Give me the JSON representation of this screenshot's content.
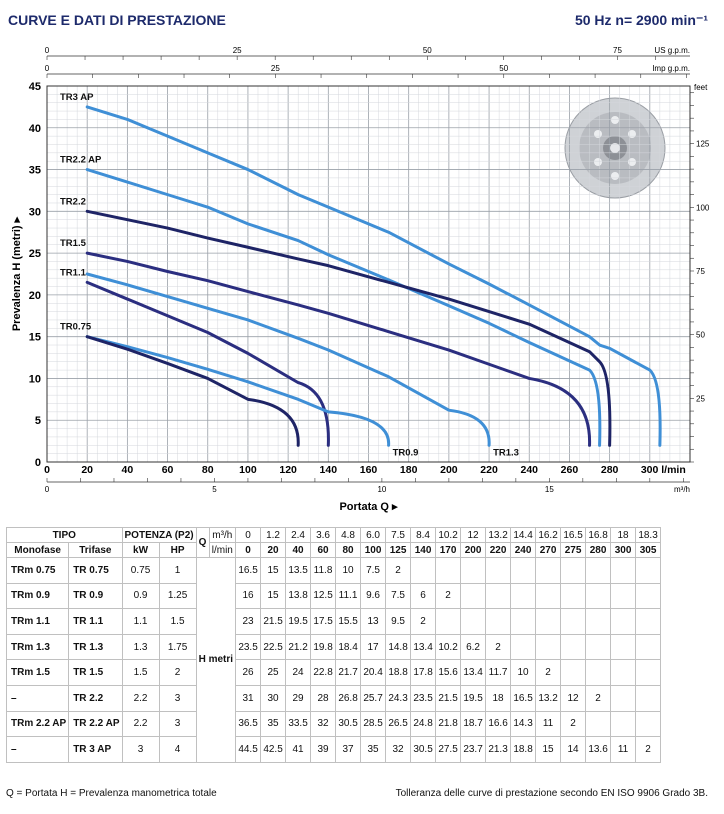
{
  "header": {
    "title": "CURVE E DATI DI PRESTAZIONE",
    "speed": "50 Hz    n= 2900 min⁻¹"
  },
  "chart_data": {
    "type": "line",
    "ylabel": "Prevalenza H (metri)",
    "xlabel": "Portata Q",
    "x_unit": "l/min",
    "xlim": [
      0,
      320
    ],
    "ylim": [
      0,
      45
    ],
    "x_ticks": [
      0,
      20,
      40,
      60,
      80,
      100,
      120,
      140,
      160,
      180,
      200,
      220,
      240,
      260,
      280,
      300
    ],
    "x_tick_labels": [
      "0",
      "20",
      "40",
      "60",
      "80",
      "100",
      "120",
      "140",
      "160",
      "180",
      "200",
      "220",
      "240",
      "260",
      "280",
      "300 l/min"
    ],
    "y_ticks": [
      0,
      5,
      10,
      15,
      20,
      25,
      30,
      35,
      40,
      45
    ],
    "top_axes": [
      {
        "unit": "US g.p.m.",
        "ticks": [
          "0",
          "25",
          "50",
          "75"
        ]
      },
      {
        "unit": "Imp g.p.m.",
        "ticks": [
          "0",
          "25",
          "50"
        ]
      }
    ],
    "bottom_axis2": {
      "unit": "m³/h",
      "ticks": [
        "0",
        "5",
        "10",
        "15"
      ]
    },
    "right_axis": {
      "unit": "feet",
      "ticks": [
        "25",
        "50",
        "75",
        "100",
        "125"
      ]
    },
    "grid": true,
    "series": [
      {
        "name": "TR3 AP",
        "color": "#3f8fd6",
        "label_at": "start",
        "x": [
          20,
          40,
          60,
          80,
          100,
          125,
          140,
          170,
          200,
          220,
          240,
          270,
          275,
          280,
          300,
          305
        ],
        "y": [
          42.5,
          41,
          39,
          37,
          35,
          32,
          30.5,
          27.5,
          23.7,
          21.3,
          18.8,
          15,
          14,
          13.6,
          11,
          2
        ]
      },
      {
        "name": "TR2.2 AP",
        "color": "#3f8fd6",
        "label_at": "start",
        "x": [
          20,
          40,
          60,
          80,
          100,
          125,
          140,
          170,
          200,
          220,
          240,
          270,
          275
        ],
        "y": [
          35,
          33.5,
          32,
          30.5,
          28.5,
          26.5,
          24.8,
          21.8,
          18.7,
          16.6,
          14.3,
          11,
          2
        ]
      },
      {
        "name": "TR2.2",
        "color": "#1e2466",
        "label_at": "start",
        "x": [
          20,
          40,
          60,
          80,
          100,
          125,
          140,
          170,
          200,
          220,
          240,
          270,
          275,
          280
        ],
        "y": [
          30,
          29,
          28,
          26.8,
          25.7,
          24.3,
          23.5,
          21.5,
          19.5,
          18,
          16.5,
          13.2,
          12,
          2
        ]
      },
      {
        "name": "TR1.5",
        "color": "#2b2e80",
        "label_at": "start",
        "x": [
          20,
          40,
          60,
          80,
          100,
          125,
          140,
          170,
          200,
          220,
          240,
          270
        ],
        "y": [
          25,
          24,
          22.8,
          21.7,
          20.4,
          18.8,
          17.8,
          15.6,
          13.4,
          11.7,
          10,
          2
        ]
      },
      {
        "name": "TR1.3",
        "color": "#3f8fd6",
        "label_at": "end",
        "x": [
          20,
          40,
          60,
          80,
          100,
          125,
          140,
          170,
          200,
          220
        ],
        "y": [
          22.5,
          21.2,
          19.8,
          18.4,
          17,
          14.8,
          13.4,
          10.2,
          6.2,
          2
        ]
      },
      {
        "name": "TR1.1",
        "color": "#2b2e80",
        "label_at": "start",
        "x": [
          20,
          40,
          60,
          80,
          100,
          125,
          140
        ],
        "y": [
          21.5,
          19.5,
          17.5,
          15.5,
          13,
          9.5,
          2
        ]
      },
      {
        "name": "TR0.9",
        "color": "#3f8fd6",
        "label_at": "end",
        "x": [
          20,
          40,
          60,
          80,
          100,
          125,
          140,
          170
        ],
        "y": [
          15,
          13.8,
          12.5,
          11.1,
          9.6,
          7.5,
          6,
          2
        ]
      },
      {
        "name": "TR0.75",
        "color": "#1e2466",
        "label_at": "start",
        "x": [
          20,
          40,
          60,
          80,
          100,
          125
        ],
        "y": [
          15,
          13.5,
          11.8,
          10,
          7.5,
          2
        ]
      }
    ]
  },
  "table": {
    "h_tipo": "TIPO",
    "h_potenza": "POTENZA (P2)",
    "h_mono": "Monofase",
    "h_tri": "Trifase",
    "h_kw": "kW",
    "h_hp": "HP",
    "q_label": "Q",
    "u_m3h": "m³/h",
    "u_lmin": "l/min",
    "h_label": "H metri",
    "m3h": [
      "0",
      "1.2",
      "2.4",
      "3.6",
      "4.8",
      "6.0",
      "7.5",
      "8.4",
      "10.2",
      "12",
      "13.2",
      "14.4",
      "16.2",
      "16.5",
      "16.8",
      "18",
      "18.3"
    ],
    "lmin": [
      "0",
      "20",
      "40",
      "60",
      "80",
      "100",
      "125",
      "140",
      "170",
      "200",
      "220",
      "240",
      "270",
      "275",
      "280",
      "300",
      "305"
    ],
    "rows": [
      {
        "mono": "TRm 0.75",
        "tri": "TR 0.75",
        "kw": "0.75",
        "hp": "1",
        "h": [
          "16.5",
          "15",
          "13.5",
          "11.8",
          "10",
          "7.5",
          "2",
          "",
          "",
          "",
          "",
          "",
          "",
          "",
          "",
          "",
          ""
        ]
      },
      {
        "mono": "TRm 0.9",
        "tri": "TR 0.9",
        "kw": "0.9",
        "hp": "1.25",
        "h": [
          "16",
          "15",
          "13.8",
          "12.5",
          "11.1",
          "9.6",
          "7.5",
          "6",
          "2",
          "",
          "",
          "",
          "",
          "",
          "",
          "",
          ""
        ]
      },
      {
        "mono": "TRm 1.1",
        "tri": "TR 1.1",
        "kw": "1.1",
        "hp": "1.5",
        "h": [
          "23",
          "21.5",
          "19.5",
          "17.5",
          "15.5",
          "13",
          "9.5",
          "2",
          "",
          "",
          "",
          "",
          "",
          "",
          "",
          "",
          ""
        ]
      },
      {
        "mono": "TRm 1.3",
        "tri": "TR 1.3",
        "kw": "1.3",
        "hp": "1.75",
        "h": [
          "23.5",
          "22.5",
          "21.2",
          "19.8",
          "18.4",
          "17",
          "14.8",
          "13.4",
          "10.2",
          "6.2",
          "2",
          "",
          "",
          "",
          "",
          "",
          ""
        ]
      },
      {
        "mono": "TRm 1.5",
        "tri": "TR 1.5",
        "kw": "1.5",
        "hp": "2",
        "h": [
          "26",
          "25",
          "24",
          "22.8",
          "21.7",
          "20.4",
          "18.8",
          "17.8",
          "15.6",
          "13.4",
          "11.7",
          "10",
          "2",
          "",
          "",
          "",
          ""
        ]
      },
      {
        "mono": "–",
        "tri": "TR 2.2",
        "kw": "2.2",
        "hp": "3",
        "h": [
          "31",
          "30",
          "29",
          "28",
          "26.8",
          "25.7",
          "24.3",
          "23.5",
          "21.5",
          "19.5",
          "18",
          "16.5",
          "13.2",
          "12",
          "2",
          "",
          ""
        ]
      },
      {
        "mono": "TRm 2.2 AP",
        "tri": "TR 2.2 AP",
        "kw": "2.2",
        "hp": "3",
        "h": [
          "36.5",
          "35",
          "33.5",
          "32",
          "30.5",
          "28.5",
          "26.5",
          "24.8",
          "21.8",
          "18.7",
          "16.6",
          "14.3",
          "11",
          "2",
          "",
          "",
          ""
        ]
      },
      {
        "mono": "–",
        "tri": "TR 3 AP",
        "kw": "3",
        "hp": "4",
        "h": [
          "44.5",
          "42.5",
          "41",
          "39",
          "37",
          "35",
          "32",
          "30.5",
          "27.5",
          "23.7",
          "21.3",
          "18.8",
          "15",
          "14",
          "13.6",
          "11",
          "2"
        ]
      }
    ]
  },
  "footer": {
    "legend": "Q = Portata    H = Prevalenza manometrica totale",
    "tolerance": "Tolleranza delle curve di prestazione secondo EN ISO 9906 Grado 3B."
  }
}
